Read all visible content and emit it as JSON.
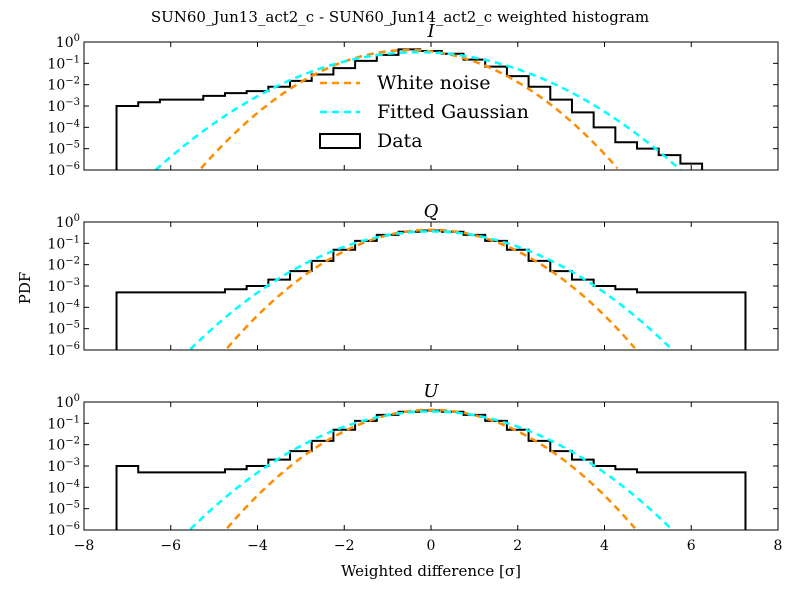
{
  "figure": {
    "suptitle": "SUN60_Jun13_act2_c - SUN60_Jun14_act2_c weighted histogram",
    "xlabel": "Weighted difference [σ]",
    "ylabel": "PDF"
  },
  "chart_data": [
    {
      "type": "line",
      "title": "I",
      "xlim": [
        -8,
        8
      ],
      "ylim": [
        1e-06,
        1
      ],
      "yscale": "log",
      "x_ticks": [
        -8,
        -6,
        -4,
        -2,
        0,
        2,
        4,
        6,
        8
      ],
      "y_ticks": [
        "10^0",
        "10^-1",
        "10^-2",
        "10^-3",
        "10^-4",
        "10^-5",
        "10^-6"
      ],
      "legend": {
        "placement": "center",
        "entries": [
          "White noise",
          "Fitted Gaussian",
          "Data"
        ]
      },
      "series": [
        {
          "name": "White noise",
          "kind": "gaussian",
          "mean": -0.5,
          "sigma": 0.95,
          "color": "#ff8c00"
        },
        {
          "name": "Fitted Gaussian",
          "kind": "gaussian",
          "mean": -0.3,
          "sigma": 1.2,
          "color": "#00ffff"
        },
        {
          "name": "Data",
          "kind": "histogram",
          "color": "#000000",
          "x": [
            -7.0,
            -6.5,
            -6.0,
            -5.5,
            -5.0,
            -4.5,
            -4.0,
            -3.5,
            -3.0,
            -2.5,
            -2.0,
            -1.5,
            -1.0,
            -0.5,
            0.0,
            0.5,
            1.0,
            1.5,
            2.0,
            2.5,
            3.0,
            3.5,
            4.0,
            4.5,
            5.0,
            5.5,
            6.0
          ],
          "y": [
            0.001,
            0.0015,
            0.002,
            0.002,
            0.003,
            0.004,
            0.005,
            0.008,
            0.015,
            0.03,
            0.06,
            0.13,
            0.25,
            0.45,
            0.38,
            0.28,
            0.15,
            0.07,
            0.025,
            0.008,
            0.002,
            0.0005,
            0.0001,
            2e-05,
            1e-05,
            5e-06,
            2e-06
          ]
        }
      ]
    },
    {
      "type": "line",
      "title": "Q",
      "xlim": [
        -8,
        8
      ],
      "ylim": [
        1e-06,
        1
      ],
      "yscale": "log",
      "x_ticks": [
        -8,
        -6,
        -4,
        -2,
        0,
        2,
        4,
        6,
        8
      ],
      "y_ticks": [
        "10^0",
        "10^-1",
        "10^-2",
        "10^-3",
        "10^-4",
        "10^-5",
        "10^-6"
      ],
      "series": [
        {
          "name": "White noise",
          "kind": "gaussian",
          "mean": 0.0,
          "sigma": 0.93,
          "color": "#ff8c00"
        },
        {
          "name": "Fitted Gaussian",
          "kind": "gaussian",
          "mean": 0.0,
          "sigma": 1.1,
          "color": "#00ffff"
        },
        {
          "name": "Data",
          "kind": "histogram",
          "color": "#000000",
          "x": [
            -7.0,
            -6.5,
            -6.0,
            -5.5,
            -5.0,
            -4.5,
            -4.0,
            -3.5,
            -3.0,
            -2.5,
            -2.0,
            -1.5,
            -1.0,
            -0.5,
            0.0,
            0.5,
            1.0,
            1.5,
            2.0,
            2.5,
            3.0,
            3.5,
            4.0,
            4.5,
            5.0,
            5.5,
            6.0,
            6.5,
            7.0
          ],
          "y": [
            0.0005,
            0.0005,
            0.0005,
            0.0005,
            0.0005,
            0.0007,
            0.001,
            0.002,
            0.005,
            0.015,
            0.05,
            0.13,
            0.25,
            0.35,
            0.4,
            0.35,
            0.25,
            0.13,
            0.05,
            0.015,
            0.005,
            0.002,
            0.001,
            0.0007,
            0.0005,
            0.0005,
            0.0005,
            0.0005,
            0.0005
          ]
        }
      ]
    },
    {
      "type": "line",
      "title": "U",
      "xlim": [
        -8,
        8
      ],
      "ylim": [
        1e-06,
        1
      ],
      "yscale": "log",
      "x_ticks": [
        -8,
        -6,
        -4,
        -2,
        0,
        2,
        4,
        6,
        8
      ],
      "y_ticks": [
        "10^0",
        "10^-1",
        "10^-2",
        "10^-3",
        "10^-4",
        "10^-5",
        "10^-6"
      ],
      "series": [
        {
          "name": "White noise",
          "kind": "gaussian",
          "mean": 0.0,
          "sigma": 0.93,
          "color": "#ff8c00"
        },
        {
          "name": "Fitted Gaussian",
          "kind": "gaussian",
          "mean": 0.0,
          "sigma": 1.1,
          "color": "#00ffff"
        },
        {
          "name": "Data",
          "kind": "histogram",
          "color": "#000000",
          "x": [
            -7.0,
            -6.5,
            -6.0,
            -5.5,
            -5.0,
            -4.5,
            -4.0,
            -3.5,
            -3.0,
            -2.5,
            -2.0,
            -1.5,
            -1.0,
            -0.5,
            0.0,
            0.5,
            1.0,
            1.5,
            2.0,
            2.5,
            3.0,
            3.5,
            4.0,
            4.5,
            5.0,
            5.5,
            6.0,
            6.5,
            7.0
          ],
          "y": [
            0.001,
            0.0005,
            0.0005,
            0.0005,
            0.0005,
            0.0007,
            0.001,
            0.002,
            0.005,
            0.015,
            0.05,
            0.13,
            0.25,
            0.35,
            0.4,
            0.35,
            0.25,
            0.13,
            0.05,
            0.015,
            0.005,
            0.002,
            0.001,
            0.0007,
            0.0005,
            0.0005,
            0.0005,
            0.0005,
            0.0005
          ]
        }
      ]
    }
  ]
}
